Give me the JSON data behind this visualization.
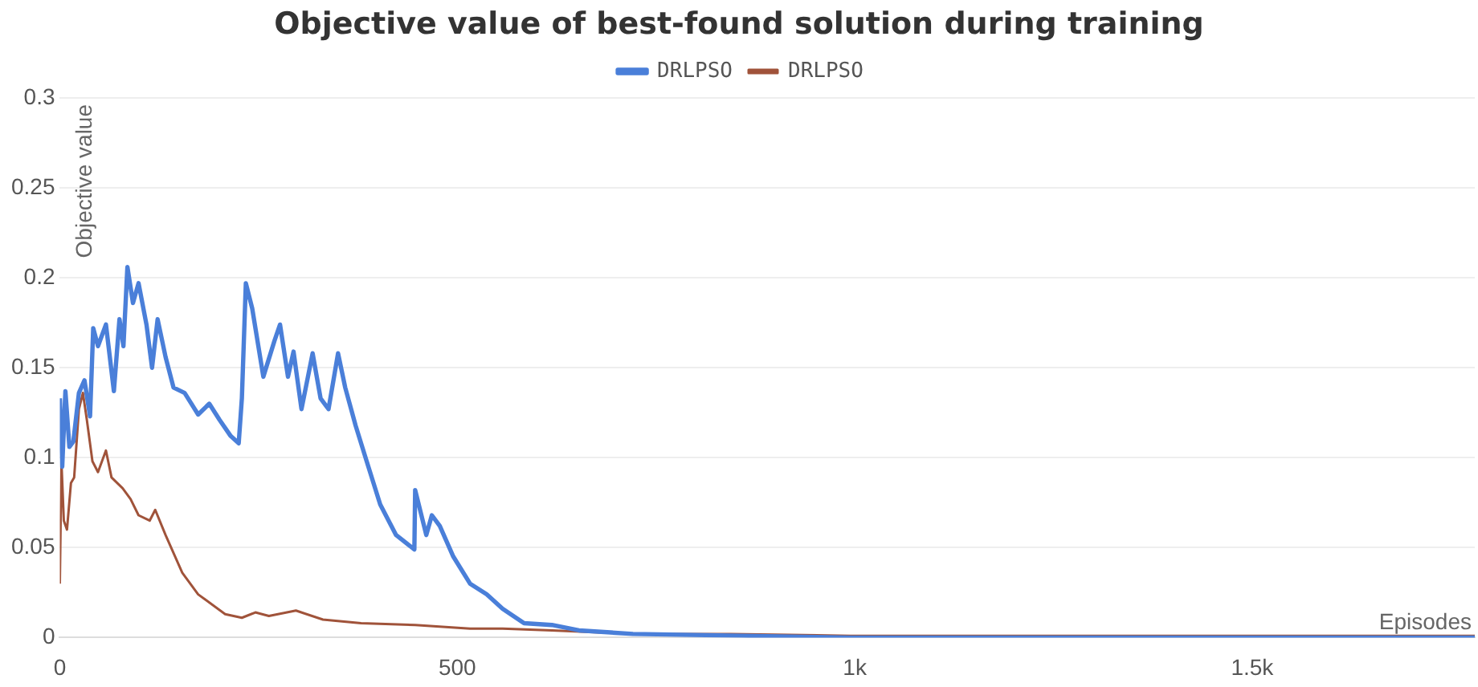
{
  "chart_data": {
    "type": "line",
    "title": "Objective value of best-found solution during training",
    "xlabel": "Episodes",
    "ylabel": "Objective value",
    "xlim": [
      0,
      1780
    ],
    "xticks": [
      0,
      500,
      {
        "value": 1000,
        "label": "1k"
      },
      {
        "value": 1500,
        "label": "1.5k"
      }
    ],
    "ylim": [
      0,
      0.3
    ],
    "yticks": [
      0,
      0.05,
      0.1,
      0.15,
      0.2,
      0.25,
      0.3
    ],
    "grid": "y",
    "legend": "top",
    "marker": "none",
    "line_style": "solid",
    "series": [
      {
        "name": "DRLPSO",
        "color": "#4a7fd9",
        "x": [
          0,
          3,
          7,
          12,
          17,
          24,
          31,
          38,
          42,
          48,
          58,
          68,
          75,
          80,
          85,
          92,
          99,
          109,
          116,
          123,
          133,
          143,
          157,
          174,
          188,
          201,
          215,
          225,
          229,
          234,
          242,
          256,
          270,
          277,
          287,
          294,
          304,
          318,
          328,
          338,
          350,
          359,
          372,
          386,
          403,
          423,
          446,
          447,
          461,
          468,
          478,
          495,
          516,
          537,
          557,
          584,
          619,
          653,
          721,
          858,
          994,
          1200,
          1500,
          1780
        ],
        "values": [
          0.133,
          0.095,
          0.137,
          0.106,
          0.109,
          0.136,
          0.143,
          0.123,
          0.172,
          0.162,
          0.174,
          0.137,
          0.177,
          0.162,
          0.206,
          0.186,
          0.197,
          0.174,
          0.15,
          0.177,
          0.156,
          0.139,
          0.136,
          0.124,
          0.13,
          0.121,
          0.112,
          0.108,
          0.133,
          0.197,
          0.183,
          0.145,
          0.165,
          0.174,
          0.145,
          0.159,
          0.127,
          0.158,
          0.133,
          0.127,
          0.158,
          0.139,
          0.118,
          0.098,
          0.074,
          0.057,
          0.049,
          0.082,
          0.057,
          0.068,
          0.062,
          0.045,
          0.03,
          0.024,
          0.016,
          0.008,
          0.007,
          0.004,
          0.002,
          0.001,
          0,
          0,
          0,
          0
        ]
      },
      {
        "name": "DRLPSO",
        "color": "#a0533a",
        "x": [
          0,
          2,
          5,
          9,
          14,
          18,
          24,
          29,
          34,
          41,
          48,
          58,
          65,
          79,
          89,
          99,
          113,
          120,
          133,
          154,
          174,
          208,
          229,
          246,
          263,
          297,
          331,
          379,
          447,
          516,
          557,
          619,
          721,
          844,
          994,
          1200,
          1500,
          1780
        ],
        "values": [
          0.03,
          0.098,
          0.065,
          0.06,
          0.086,
          0.089,
          0.127,
          0.136,
          0.121,
          0.098,
          0.092,
          0.104,
          0.089,
          0.083,
          0.077,
          0.068,
          0.065,
          0.071,
          0.057,
          0.036,
          0.024,
          0.013,
          0.011,
          0.014,
          0.012,
          0.015,
          0.01,
          0.008,
          0.007,
          0.005,
          0.005,
          0.004,
          0.002,
          0.002,
          0.001,
          0.001,
          0.001,
          0.001
        ]
      }
    ]
  }
}
